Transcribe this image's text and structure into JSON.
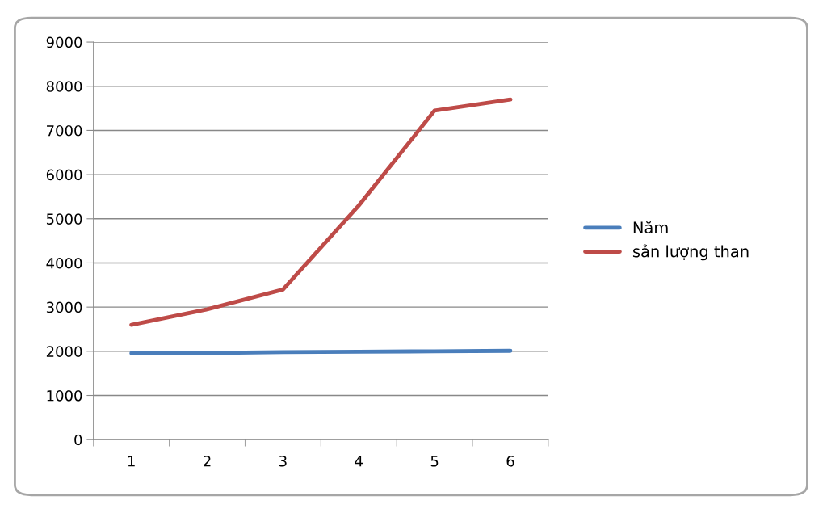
{
  "chart_data": {
    "type": "line",
    "categories": [
      "1",
      "2",
      "3",
      "4",
      "5",
      "6"
    ],
    "series": [
      {
        "name": "Năm",
        "color": "#4a7ebb",
        "values": [
          1955,
          1960,
          1980,
          1990,
          2000,
          2010
        ]
      },
      {
        "name": "sản lượng than",
        "color": "#be4b48",
        "values": [
          2600,
          2950,
          3400,
          5300,
          7450,
          7700
        ]
      }
    ],
    "ylim": [
      0,
      9000
    ],
    "yticks": [
      0,
      1000,
      2000,
      3000,
      4000,
      5000,
      6000,
      7000,
      8000,
      9000
    ],
    "grid": "y",
    "legend": "right",
    "marker": "none",
    "line_style": "solid"
  }
}
